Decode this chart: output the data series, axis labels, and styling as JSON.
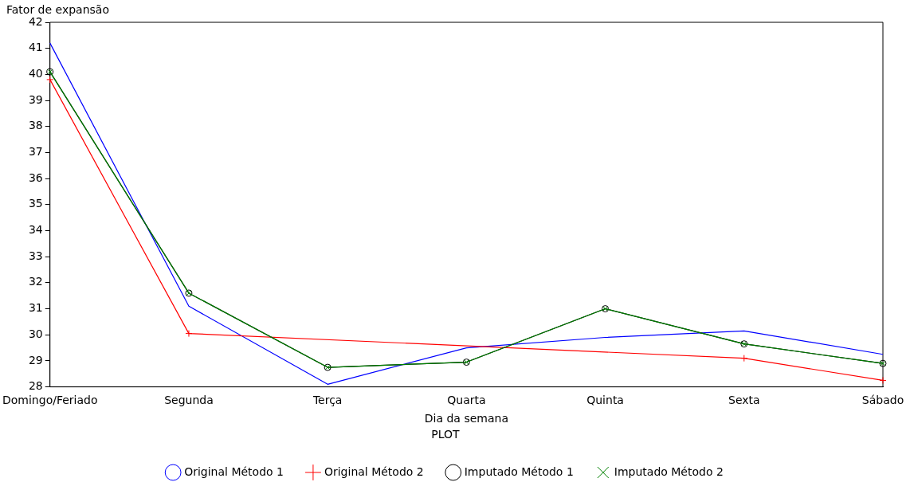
{
  "chart_data": {
    "type": "line",
    "xlabel": "Dia da semana",
    "ylabel": "Fator de expansão",
    "legend_title": "PLOT",
    "legend": "bottom",
    "grid": false,
    "categories": [
      "Domingo/Feriado",
      "Segunda",
      "Terça",
      "Quarta",
      "Quinta",
      "Sexta",
      "Sábado"
    ],
    "ylim": [
      28,
      42
    ],
    "yticks": [
      28,
      29,
      30,
      31,
      32,
      33,
      34,
      35,
      36,
      37,
      38,
      39,
      40,
      41,
      42
    ],
    "series": [
      {
        "name": "Original Método 1",
        "color": "#0000ff",
        "marker": "none",
        "values": [
          41.2,
          31.1,
          28.1,
          29.5,
          29.9,
          30.15,
          29.25
        ]
      },
      {
        "name": "Original Método 2",
        "color": "#ff0000",
        "marker": "cross",
        "values": [
          39.8,
          30.05,
          null,
          null,
          null,
          29.1,
          28.25
        ]
      },
      {
        "name": "Imputado Método 1",
        "color": "#000000",
        "marker": "circle",
        "values": [
          40.1,
          31.6,
          28.75,
          28.95,
          31.0,
          29.65,
          28.9
        ]
      },
      {
        "name": "Imputado Método 2",
        "color": "#008000",
        "marker": "x",
        "values": [
          40.1,
          31.6,
          28.75,
          28.95,
          31.0,
          29.65,
          28.9
        ]
      }
    ]
  }
}
